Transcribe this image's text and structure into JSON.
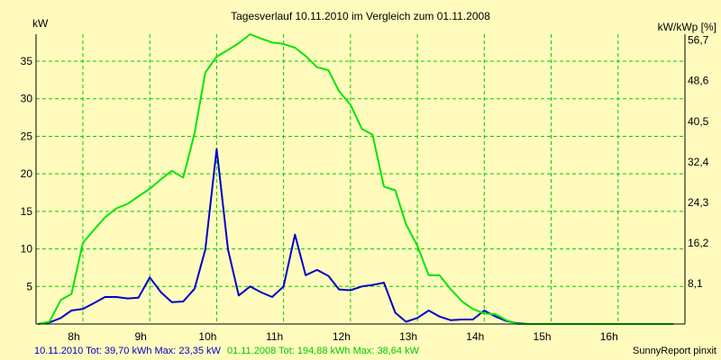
{
  "chart_data": {
    "type": "line",
    "title": "Tagesverlauf 10.11.2010 im Vergleich zum 01.11.2008",
    "ylabel_left": "kW",
    "ylabel_right": "kW/kWp [%]",
    "xlim": [
      7.3,
      17.0
    ],
    "ylim": [
      0,
      38.6
    ],
    "x_ticks": [
      {
        "value": 8,
        "label": "8h"
      },
      {
        "value": 9,
        "label": "9h"
      },
      {
        "value": 10,
        "label": "10h"
      },
      {
        "value": 11,
        "label": "11h"
      },
      {
        "value": 12,
        "label": "12h"
      },
      {
        "value": 13,
        "label": "13h"
      },
      {
        "value": 14,
        "label": "14h"
      },
      {
        "value": 15,
        "label": "15h"
      },
      {
        "value": 16,
        "label": "16h"
      }
    ],
    "y_ticks_left": [
      {
        "value": 5,
        "label": "5"
      },
      {
        "value": 10,
        "label": "10"
      },
      {
        "value": 15,
        "label": "15"
      },
      {
        "value": 20,
        "label": "20"
      },
      {
        "value": 25,
        "label": "25"
      },
      {
        "value": 30,
        "label": "30"
      },
      {
        "value": 35,
        "label": "35"
      }
    ],
    "y_ticks_right": [
      {
        "value": 5.4,
        "label": "8,1"
      },
      {
        "value": 10.8,
        "label": "16,2"
      },
      {
        "value": 16.2,
        "label": "24,3"
      },
      {
        "value": 21.6,
        "label": "32,4"
      },
      {
        "value": 27.0,
        "label": "40,5"
      },
      {
        "value": 32.4,
        "label": "48,6"
      },
      {
        "value": 37.8,
        "label": "56,7"
      }
    ],
    "grid": true,
    "colors": {
      "background": "#fffbbd",
      "grid": "#00cc00",
      "axis": "#000000",
      "series_2010": "#0000c8",
      "series_2008": "#00e600"
    },
    "series": [
      {
        "name": "10.11.2010",
        "color": "#0000c8",
        "x": [
          7.33,
          7.5,
          7.67,
          7.83,
          8.0,
          8.17,
          8.33,
          8.5,
          8.67,
          8.83,
          9.0,
          9.17,
          9.33,
          9.5,
          9.67,
          9.83,
          10.0,
          10.17,
          10.33,
          10.5,
          10.67,
          10.83,
          11.0,
          11.17,
          11.33,
          11.5,
          11.67,
          11.83,
          12.0,
          12.17,
          12.33,
          12.5,
          12.67,
          12.83,
          13.0,
          13.17,
          13.33,
          13.5,
          13.67,
          13.83,
          14.0,
          14.17,
          14.33,
          14.5,
          14.67,
          14.83,
          15.0,
          15.17,
          15.33,
          15.5,
          15.67,
          15.83,
          16.0,
          16.17,
          16.33,
          16.5,
          16.67,
          16.83
        ],
        "values": [
          0,
          0.2,
          0.8,
          1.8,
          2.0,
          2.8,
          3.6,
          3.6,
          3.4,
          3.5,
          6.2,
          4.2,
          2.9,
          3.0,
          4.7,
          9.9,
          23.3,
          9.9,
          3.8,
          5.0,
          4.2,
          3.6,
          5.0,
          11.9,
          6.5,
          7.2,
          6.4,
          4.6,
          4.5,
          5.0,
          5.2,
          5.5,
          1.5,
          0.3,
          0.8,
          1.8,
          1.0,
          0.5,
          0.6,
          0.6,
          1.8,
          1.0,
          0.4,
          0.1,
          0.0,
          0.0,
          0.0,
          0.0,
          0.0,
          0.0,
          0.0,
          0.0,
          0.0,
          0.0,
          0.0,
          0.0,
          0.0,
          0.0
        ]
      },
      {
        "name": "01.11.2008",
        "color": "#00e600",
        "x": [
          7.33,
          7.5,
          7.67,
          7.83,
          8.0,
          8.17,
          8.33,
          8.5,
          8.67,
          8.83,
          9.0,
          9.17,
          9.33,
          9.5,
          9.67,
          9.83,
          10.0,
          10.17,
          10.33,
          10.5,
          10.67,
          10.83,
          11.0,
          11.17,
          11.33,
          11.5,
          11.67,
          11.83,
          12.0,
          12.17,
          12.33,
          12.5,
          12.67,
          12.83,
          13.0,
          13.17,
          13.33,
          13.5,
          13.67,
          13.83,
          14.0,
          14.17,
          14.33,
          14.5,
          14.67,
          14.83,
          15.0,
          15.17,
          15.33,
          15.5,
          15.67,
          15.83,
          16.0,
          16.17,
          16.33,
          16.5,
          16.67,
          16.83
        ],
        "values": [
          0,
          0.3,
          3.2,
          4.0,
          10.8,
          12.6,
          14.2,
          15.4,
          16.0,
          17.0,
          18.0,
          19.3,
          20.4,
          19.5,
          25.4,
          33.5,
          35.6,
          36.5,
          37.4,
          38.6,
          38.0,
          37.5,
          37.3,
          36.8,
          35.7,
          34.2,
          33.8,
          31.0,
          29.2,
          26.0,
          25.2,
          18.3,
          17.8,
          13.3,
          10.4,
          6.5,
          6.5,
          4.6,
          3.0,
          2.0,
          1.4,
          1.3,
          0.5,
          0.0,
          0.0,
          0.0,
          0.0,
          0.0,
          0.0,
          0.0,
          0.0,
          0.0,
          0.0,
          0.0,
          0.0,
          0.0,
          0.0,
          0.0
        ]
      }
    ]
  },
  "footer": {
    "series_2010_summary": "10.11.2010 Tot: 39,70 kWh Max: 23,35 kW",
    "series_2008_summary": "01.11.2008 Tot: 194,88 kWh Max: 38,64 kW",
    "credit": "SunnyReport pinxit"
  }
}
